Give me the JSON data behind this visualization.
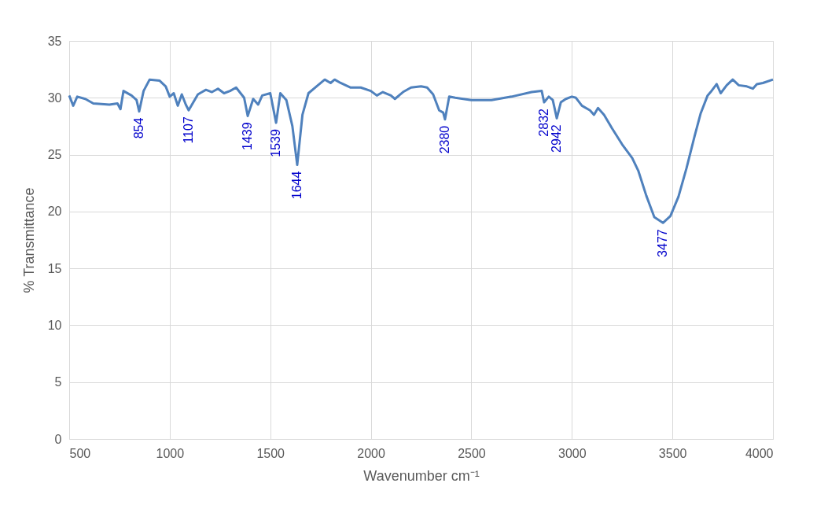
{
  "chart_data": {
    "type": "line",
    "xlabel": "Wavenumber cm⁻¹",
    "ylabel": "% Transmittance",
    "xlim": [
      500,
      4000
    ],
    "xticks": [
      500,
      1000,
      1500,
      2000,
      2500,
      3000,
      3500,
      4000
    ],
    "ylim": [
      0,
      35
    ],
    "yticks": [
      0,
      5,
      10,
      15,
      20,
      25,
      30,
      35
    ],
    "grid": true,
    "marker": "none",
    "line_style": "solid",
    "x": [
      500,
      520,
      540,
      580,
      620,
      700,
      740,
      755,
      770,
      810,
      835,
      848,
      870,
      900,
      950,
      980,
      1000,
      1020,
      1040,
      1060,
      1080,
      1094,
      1140,
      1180,
      1210,
      1240,
      1270,
      1300,
      1330,
      1370,
      1388,
      1415,
      1440,
      1460,
      1500,
      1529,
      1550,
      1580,
      1610,
      1634,
      1660,
      1690,
      1730,
      1771,
      1800,
      1820,
      1850,
      1900,
      1950,
      2000,
      2030,
      2060,
      2100,
      2120,
      2160,
      2200,
      2250,
      2280,
      2310,
      2340,
      2360,
      2369,
      2390,
      2420,
      2500,
      2600,
      2700,
      2800,
      2850,
      2862,
      2885,
      2905,
      2925,
      2945,
      2970,
      3000,
      3020,
      3050,
      3090,
      3110,
      3130,
      3160,
      3200,
      3250,
      3300,
      3330,
      3370,
      3410,
      3453,
      3490,
      3530,
      3570,
      3610,
      3640,
      3675,
      3690,
      3720,
      3740,
      3770,
      3800,
      3830,
      3870,
      3900,
      3920,
      3950,
      4000
    ],
    "series": [
      {
        "color": "#4f81bd",
        "values": [
          30.2,
          29.3,
          30.1,
          29.9,
          29.5,
          29.4,
          29.5,
          29.0,
          30.6,
          30.2,
          29.8,
          28.8,
          30.6,
          31.6,
          31.5,
          31.0,
          30.1,
          30.4,
          29.3,
          30.3,
          29.4,
          28.9,
          30.3,
          30.7,
          30.5,
          30.8,
          30.4,
          30.6,
          30.9,
          30.0,
          28.4,
          29.9,
          29.4,
          30.2,
          30.4,
          27.8,
          30.4,
          29.8,
          27.5,
          24.1,
          28.5,
          30.4,
          31.0,
          31.6,
          31.3,
          31.6,
          31.3,
          30.9,
          30.9,
          30.6,
          30.2,
          30.5,
          30.2,
          29.9,
          30.5,
          30.9,
          31.0,
          30.9,
          30.3,
          28.9,
          28.7,
          28.1,
          30.1,
          30.0,
          29.8,
          29.8,
          30.1,
          30.5,
          30.6,
          29.6,
          30.1,
          29.8,
          28.2,
          29.6,
          29.9,
          30.1,
          30.0,
          29.3,
          28.9,
          28.5,
          29.1,
          28.5,
          27.3,
          25.9,
          24.7,
          23.6,
          21.4,
          19.5,
          19.0,
          19.6,
          21.3,
          23.8,
          26.6,
          28.6,
          30.2,
          30.5,
          31.2,
          30.4,
          31.1,
          31.6,
          31.1,
          31.0,
          30.8,
          31.2,
          31.3,
          31.6
        ]
      }
    ],
    "annotations": [
      {
        "text": "854",
        "x": 848,
        "y": 28.8
      },
      {
        "text": "1107",
        "x": 1094,
        "y": 28.9
      },
      {
        "text": "1439",
        "x": 1388,
        "y": 28.4
      },
      {
        "text": "1539",
        "x": 1529,
        "y": 27.8
      },
      {
        "text": "1644",
        "x": 1634,
        "y": 24.1
      },
      {
        "text": "2380",
        "x": 2369,
        "y": 28.1
      },
      {
        "text": "2832",
        "x": 2862,
        "y": 29.6
      },
      {
        "text": "2942",
        "x": 2925,
        "y": 28.2
      },
      {
        "text": "3477",
        "x": 3453,
        "y": 19.0
      }
    ]
  }
}
